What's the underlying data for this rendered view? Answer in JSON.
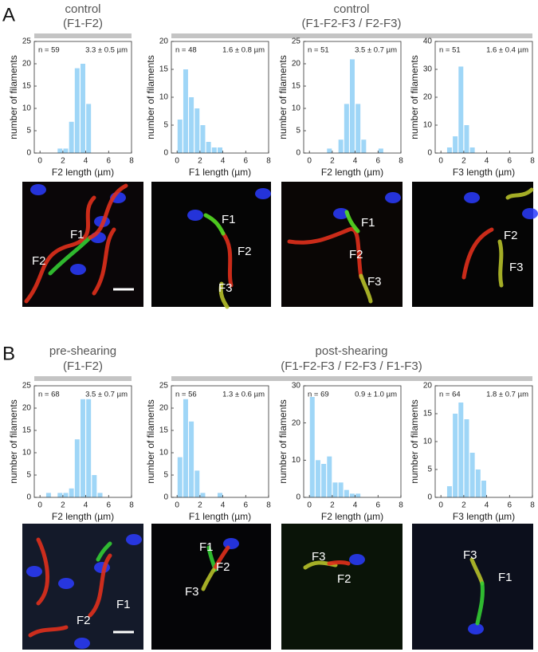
{
  "panels": [
    {
      "label": "A",
      "groups": [
        {
          "title": "control",
          "subtitle": "(F1-F2)"
        },
        {
          "title": "control",
          "subtitle": "(F1-F2-F3 / F2-F3)"
        }
      ]
    },
    {
      "label": "B",
      "groups": [
        {
          "title": "pre-shearing",
          "subtitle": "(F1-F2)"
        },
        {
          "title": "post-shearing",
          "subtitle": "(F1-F2-F3 / F2-F3 / F1-F3)"
        }
      ]
    }
  ],
  "chart_data": [
    {
      "type": "histogram",
      "n_label": "n = 59",
      "stat_label": "3.3 ± 0.5 µm",
      "xlabel": "F2 length (µm)",
      "ylabel": "number of filaments",
      "color": "#9fd6f7",
      "bins": [
        0,
        0.5,
        1,
        1.5,
        2,
        2.5,
        3,
        3.5,
        4,
        4.5,
        5,
        5.5,
        6,
        6.5,
        7,
        7.5,
        8
      ],
      "values": [
        0,
        0,
        0,
        1,
        1,
        7,
        19,
        20,
        11,
        0,
        0,
        0,
        0,
        0,
        0,
        0
      ],
      "xlim": [
        -0.5,
        8
      ],
      "xticks": [
        0,
        2,
        4,
        6,
        8
      ],
      "ylim": [
        0,
        25
      ],
      "yticks": [
        0,
        5,
        10,
        15,
        20,
        25
      ]
    },
    {
      "type": "histogram",
      "n_label": "n = 48",
      "stat_label": "1.6 ± 0.8 µm",
      "xlabel": "F1 length (µm)",
      "ylabel": "number of filaments",
      "color": "#9fd6f7",
      "bins": [
        0,
        0.5,
        1,
        1.5,
        2,
        2.5,
        3,
        3.5,
        4,
        4.5,
        5,
        5.5,
        6,
        6.5,
        7,
        7.5,
        8
      ],
      "values": [
        6,
        15,
        10,
        8,
        5,
        2,
        1,
        1,
        0,
        0,
        0,
        0,
        0,
        0,
        0,
        0
      ],
      "xlim": [
        -0.5,
        8
      ],
      "xticks": [
        0,
        2,
        4,
        6,
        8
      ],
      "ylim": [
        0,
        20
      ],
      "yticks": [
        0,
        5,
        10,
        15,
        20
      ]
    },
    {
      "type": "histogram",
      "n_label": "n = 51",
      "stat_label": "3.5 ± 0.7 µm",
      "xlabel": "F2 length (µm)",
      "ylabel": "number of filaments",
      "color": "#9fd6f7",
      "bins": [
        0,
        0.5,
        1,
        1.5,
        2,
        2.5,
        3,
        3.5,
        4,
        4.5,
        5,
        5.5,
        6,
        6.5,
        7,
        7.5,
        8
      ],
      "values": [
        0,
        0,
        0,
        1,
        0,
        3,
        11,
        21,
        11,
        3,
        0,
        0,
        1,
        0,
        0,
        0
      ],
      "xlim": [
        -0.5,
        8
      ],
      "xticks": [
        0,
        2,
        4,
        6,
        8
      ],
      "ylim": [
        0,
        25
      ],
      "yticks": [
        0,
        5,
        10,
        15,
        20,
        25
      ]
    },
    {
      "type": "histogram",
      "n_label": "n = 51",
      "stat_label": "1.6 ± 0.4 µm",
      "xlabel": "F3 length (µm)",
      "ylabel": "number of filaments",
      "color": "#9fd6f7",
      "bins": [
        0,
        0.5,
        1,
        1.5,
        2,
        2.5,
        3,
        3.5,
        4,
        4.5,
        5,
        5.5,
        6,
        6.5,
        7,
        7.5,
        8
      ],
      "values": [
        0,
        2,
        6,
        31,
        10,
        2,
        0,
        0,
        0,
        0,
        0,
        0,
        0,
        0,
        0,
        0
      ],
      "xlim": [
        -0.5,
        8
      ],
      "xticks": [
        0,
        2,
        4,
        6,
        8
      ],
      "ylim": [
        0,
        40
      ],
      "yticks": [
        0,
        10,
        20,
        30,
        40
      ]
    },
    {
      "type": "histogram",
      "n_label": "n = 68",
      "stat_label": "3.5 ± 0.7 µm",
      "xlabel": "F2 length (µm)",
      "ylabel": "number of filaments",
      "color": "#9fd6f7",
      "bins": [
        0,
        0.5,
        1,
        1.5,
        2,
        2.5,
        3,
        3.5,
        4,
        4.5,
        5,
        5.5,
        6,
        6.5,
        7,
        7.5,
        8
      ],
      "values": [
        0,
        1,
        0,
        1,
        1,
        2,
        13,
        22,
        22,
        5,
        1,
        0,
        0,
        0,
        0,
        0
      ],
      "xlim": [
        -0.5,
        8
      ],
      "xticks": [
        0,
        2,
        4,
        6,
        8
      ],
      "ylim": [
        0,
        25
      ],
      "yticks": [
        0,
        5,
        10,
        15,
        20,
        25
      ]
    },
    {
      "type": "histogram",
      "n_label": "n = 56",
      "stat_label": "1.3 ± 0.6 µm",
      "xlabel": "F1 length (µm)",
      "ylabel": "number of filaments",
      "color": "#9fd6f7",
      "bins": [
        0,
        0.5,
        1,
        1.5,
        2,
        2.5,
        3,
        3.5,
        4,
        4.5,
        5,
        5.5,
        6,
        6.5,
        7,
        7.5,
        8
      ],
      "values": [
        9,
        22,
        17,
        6,
        1,
        0,
        0,
        1,
        0,
        0,
        0,
        0,
        0,
        0,
        0,
        0
      ],
      "xlim": [
        -0.5,
        8
      ],
      "xticks": [
        0,
        2,
        4,
        6,
        8
      ],
      "ylim": [
        0,
        25
      ],
      "yticks": [
        0,
        5,
        10,
        15,
        20,
        25
      ]
    },
    {
      "type": "histogram",
      "n_label": "n = 69",
      "stat_label": "0.9 ± 1.0 µm",
      "xlabel": "F2 length (µm)",
      "ylabel": "number of filaments",
      "color": "#9fd6f7",
      "bins": [
        0,
        0.5,
        1,
        1.5,
        2,
        2.5,
        3,
        3.5,
        4,
        4.5,
        5,
        5.5,
        6,
        6.5,
        7,
        7.5,
        8
      ],
      "values": [
        27,
        10,
        9,
        11,
        4,
        4,
        2,
        1,
        1,
        0,
        0,
        0,
        0,
        0,
        0,
        0
      ],
      "xlim": [
        -0.5,
        8
      ],
      "xticks": [
        0,
        2,
        4,
        6,
        8
      ],
      "ylim": [
        0,
        30
      ],
      "yticks": [
        0,
        10,
        20,
        30
      ]
    },
    {
      "type": "histogram",
      "n_label": "n = 64",
      "stat_label": "1.8 ± 0.7 µm",
      "xlabel": "F3 length (µm)",
      "ylabel": "number of filaments",
      "color": "#9fd6f7",
      "bins": [
        0,
        0.5,
        1,
        1.5,
        2,
        2.5,
        3,
        3.5,
        4,
        4.5,
        5,
        5.5,
        6,
        6.5,
        7,
        7.5,
        8
      ],
      "values": [
        0,
        2,
        15,
        17,
        14,
        8,
        5,
        3,
        0,
        0,
        0,
        0,
        0,
        0,
        0,
        0
      ],
      "xlim": [
        -0.5,
        8
      ],
      "xticks": [
        0,
        2,
        4,
        6,
        8
      ],
      "ylim": [
        0,
        20
      ],
      "yticks": [
        0,
        5,
        10,
        15,
        20
      ]
    }
  ],
  "images": [
    {
      "labels": [
        "F1",
        "F2"
      ]
    },
    {
      "labels": [
        "F1",
        "F2",
        "F3"
      ]
    },
    {
      "labels": [
        "F1",
        "F2",
        "F3"
      ]
    },
    {
      "labels": [
        "F2",
        "F3"
      ]
    },
    {
      "labels": [
        "F1",
        "F2"
      ]
    },
    {
      "labels": [
        "F1",
        "F2",
        "F3"
      ]
    },
    {
      "labels": [
        "F3",
        "F2"
      ]
    },
    {
      "labels": [
        "F3",
        "F1"
      ]
    }
  ]
}
